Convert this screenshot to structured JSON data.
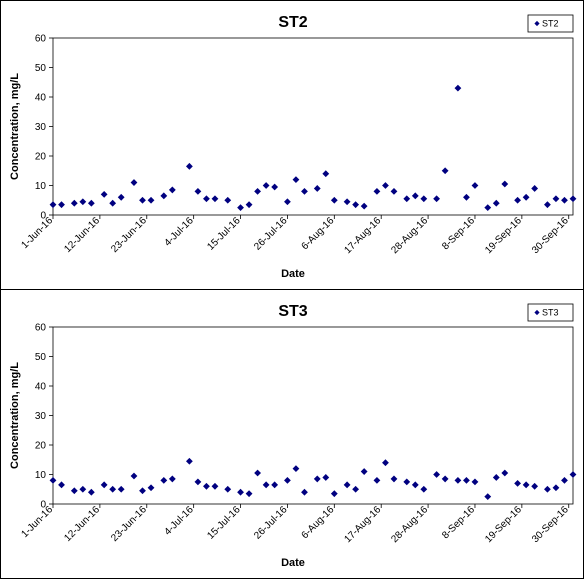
{
  "chart_data": [
    {
      "type": "scatter",
      "title": "ST2",
      "xlabel": "Date",
      "ylabel": "Concentration, mg/L",
      "ylim": [
        0,
        60
      ],
      "yticks": [
        0,
        10,
        20,
        30,
        40,
        50,
        60
      ],
      "xticks": [
        "1-Jun-16",
        "12-Jun-16",
        "23-Jun-16",
        "4-Jul-16",
        "15-Jul-16",
        "26-Jul-16",
        "6-Aug-16",
        "17-Aug-16",
        "28-Aug-16",
        "8-Sep-16",
        "19-Sep-16",
        "30-Sep-16"
      ],
      "legend_position": "top-right",
      "marker_color": "#000080",
      "series": [
        {
          "name": "ST2",
          "points": [
            {
              "x": "2016-06-01",
              "y": 3.5
            },
            {
              "x": "2016-06-03",
              "y": 3.5
            },
            {
              "x": "2016-06-06",
              "y": 4.0
            },
            {
              "x": "2016-06-08",
              "y": 4.5
            },
            {
              "x": "2016-06-10",
              "y": 4.0
            },
            {
              "x": "2016-06-13",
              "y": 7.0
            },
            {
              "x": "2016-06-15",
              "y": 4.0
            },
            {
              "x": "2016-06-17",
              "y": 6.0
            },
            {
              "x": "2016-06-20",
              "y": 11.0
            },
            {
              "x": "2016-06-22",
              "y": 5.0
            },
            {
              "x": "2016-06-24",
              "y": 5.0
            },
            {
              "x": "2016-06-27",
              "y": 6.5
            },
            {
              "x": "2016-06-29",
              "y": 8.5
            },
            {
              "x": "2016-07-03",
              "y": 16.5
            },
            {
              "x": "2016-07-05",
              "y": 8.0
            },
            {
              "x": "2016-07-07",
              "y": 5.5
            },
            {
              "x": "2016-07-09",
              "y": 5.5
            },
            {
              "x": "2016-07-12",
              "y": 5.0
            },
            {
              "x": "2016-07-15",
              "y": 2.5
            },
            {
              "x": "2016-07-17",
              "y": 3.5
            },
            {
              "x": "2016-07-19",
              "y": 8.0
            },
            {
              "x": "2016-07-21",
              "y": 10.0
            },
            {
              "x": "2016-07-23",
              "y": 9.5
            },
            {
              "x": "2016-07-26",
              "y": 4.5
            },
            {
              "x": "2016-07-28",
              "y": 12.0
            },
            {
              "x": "2016-07-30",
              "y": 8.0
            },
            {
              "x": "2016-08-02",
              "y": 9.0
            },
            {
              "x": "2016-08-04",
              "y": 14.0
            },
            {
              "x": "2016-08-06",
              "y": 5.0
            },
            {
              "x": "2016-08-09",
              "y": 4.5
            },
            {
              "x": "2016-08-11",
              "y": 3.5
            },
            {
              "x": "2016-08-13",
              "y": 3.0
            },
            {
              "x": "2016-08-16",
              "y": 8.0
            },
            {
              "x": "2016-08-18",
              "y": 10.0
            },
            {
              "x": "2016-08-20",
              "y": 8.0
            },
            {
              "x": "2016-08-23",
              "y": 5.5
            },
            {
              "x": "2016-08-25",
              "y": 6.5
            },
            {
              "x": "2016-08-27",
              "y": 5.5
            },
            {
              "x": "2016-08-30",
              "y": 5.5
            },
            {
              "x": "2016-09-01",
              "y": 15.0
            },
            {
              "x": "2016-09-04",
              "y": 43.0
            },
            {
              "x": "2016-09-06",
              "y": 6.0
            },
            {
              "x": "2016-09-08",
              "y": 10.0
            },
            {
              "x": "2016-09-11",
              "y": 2.5
            },
            {
              "x": "2016-09-13",
              "y": 4.0
            },
            {
              "x": "2016-09-15",
              "y": 10.5
            },
            {
              "x": "2016-09-18",
              "y": 5.0
            },
            {
              "x": "2016-09-20",
              "y": 6.0
            },
            {
              "x": "2016-09-22",
              "y": 9.0
            },
            {
              "x": "2016-09-25",
              "y": 3.5
            },
            {
              "x": "2016-09-27",
              "y": 5.5
            },
            {
              "x": "2016-09-29",
              "y": 5.0
            },
            {
              "x": "2016-10-01",
              "y": 5.5
            }
          ]
        }
      ]
    },
    {
      "type": "scatter",
      "title": "ST3",
      "xlabel": "Date",
      "ylabel": "Concentration, mg/L",
      "ylim": [
        0,
        60
      ],
      "yticks": [
        0,
        10,
        20,
        30,
        40,
        50,
        60
      ],
      "xticks": [
        "1-Jun-16",
        "12-Jun-16",
        "23-Jun-16",
        "4-Jul-16",
        "15-Jul-16",
        "26-Jul-16",
        "6-Aug-16",
        "17-Aug-16",
        "28-Aug-16",
        "8-Sep-16",
        "19-Sep-16",
        "30-Sep-16"
      ],
      "legend_position": "top-right",
      "marker_color": "#000080",
      "series": [
        {
          "name": "ST3",
          "points": [
            {
              "x": "2016-06-01",
              "y": 8.0
            },
            {
              "x": "2016-06-03",
              "y": 6.5
            },
            {
              "x": "2016-06-06",
              "y": 4.5
            },
            {
              "x": "2016-06-08",
              "y": 5.0
            },
            {
              "x": "2016-06-10",
              "y": 4.0
            },
            {
              "x": "2016-06-13",
              "y": 6.5
            },
            {
              "x": "2016-06-15",
              "y": 5.0
            },
            {
              "x": "2016-06-17",
              "y": 5.0
            },
            {
              "x": "2016-06-20",
              "y": 9.5
            },
            {
              "x": "2016-06-22",
              "y": 4.5
            },
            {
              "x": "2016-06-24",
              "y": 5.5
            },
            {
              "x": "2016-06-27",
              "y": 8.0
            },
            {
              "x": "2016-06-29",
              "y": 8.5
            },
            {
              "x": "2016-07-03",
              "y": 14.5
            },
            {
              "x": "2016-07-05",
              "y": 7.5
            },
            {
              "x": "2016-07-07",
              "y": 6.0
            },
            {
              "x": "2016-07-09",
              "y": 6.0
            },
            {
              "x": "2016-07-12",
              "y": 5.0
            },
            {
              "x": "2016-07-15",
              "y": 4.0
            },
            {
              "x": "2016-07-17",
              "y": 3.5
            },
            {
              "x": "2016-07-19",
              "y": 10.5
            },
            {
              "x": "2016-07-21",
              "y": 6.5
            },
            {
              "x": "2016-07-23",
              "y": 6.5
            },
            {
              "x": "2016-07-26",
              "y": 8.0
            },
            {
              "x": "2016-07-28",
              "y": 12.0
            },
            {
              "x": "2016-07-30",
              "y": 4.0
            },
            {
              "x": "2016-08-02",
              "y": 8.5
            },
            {
              "x": "2016-08-04",
              "y": 9.0
            },
            {
              "x": "2016-08-06",
              "y": 3.5
            },
            {
              "x": "2016-08-09",
              "y": 6.5
            },
            {
              "x": "2016-08-11",
              "y": 5.0
            },
            {
              "x": "2016-08-13",
              "y": 11.0
            },
            {
              "x": "2016-08-16",
              "y": 8.0
            },
            {
              "x": "2016-08-18",
              "y": 14.0
            },
            {
              "x": "2016-08-20",
              "y": 8.5
            },
            {
              "x": "2016-08-23",
              "y": 7.5
            },
            {
              "x": "2016-08-25",
              "y": 6.5
            },
            {
              "x": "2016-08-27",
              "y": 5.0
            },
            {
              "x": "2016-08-30",
              "y": 10.0
            },
            {
              "x": "2016-09-01",
              "y": 8.5
            },
            {
              "x": "2016-09-04",
              "y": 8.0
            },
            {
              "x": "2016-09-06",
              "y": 8.0
            },
            {
              "x": "2016-09-08",
              "y": 7.5
            },
            {
              "x": "2016-09-11",
              "y": 2.5
            },
            {
              "x": "2016-09-13",
              "y": 9.0
            },
            {
              "x": "2016-09-15",
              "y": 10.5
            },
            {
              "x": "2016-09-18",
              "y": 7.0
            },
            {
              "x": "2016-09-20",
              "y": 6.5
            },
            {
              "x": "2016-09-22",
              "y": 6.0
            },
            {
              "x": "2016-09-25",
              "y": 5.0
            },
            {
              "x": "2016-09-27",
              "y": 5.5
            },
            {
              "x": "2016-09-29",
              "y": 8.0
            },
            {
              "x": "2016-10-01",
              "y": 10.0
            }
          ]
        }
      ]
    }
  ]
}
